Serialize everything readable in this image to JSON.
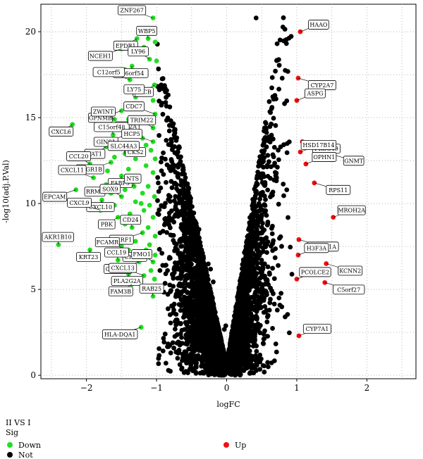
{
  "chart_data": {
    "type": "scatter",
    "title": "",
    "xlabel": "logFC",
    "ylabel": "-log10(adj.P.Val)",
    "xlim": [
      -2.65,
      2.7
    ],
    "ylim": [
      -0.2,
      21.6
    ],
    "x_ticks": [
      -2,
      -1,
      0,
      1,
      2
    ],
    "y_ticks": [
      0,
      5,
      10,
      15,
      20
    ],
    "grid": "dotted",
    "legend": {
      "placement": "bottom-left",
      "title1": "II VS I",
      "title2": "Sig",
      "entries": [
        {
          "name": "Down",
          "color": "#22dd22"
        },
        {
          "name": "Not",
          "color": "#000000"
        },
        {
          "name": "Up",
          "color": "#ee1111"
        }
      ]
    },
    "colors": {
      "down": "#22dd22",
      "not": "#000000",
      "up": "#ee1111"
    },
    "up_points": [
      {
        "x": 1.05,
        "y": 20.0,
        "label": "HAAO"
      },
      {
        "x": 1.02,
        "y": 17.3,
        "label": "CYP2A7"
      },
      {
        "x": 1.0,
        "y": 16.0,
        "label": "ASPG"
      },
      {
        "x": 1.08,
        "y": 13.6,
        "label": "FKSG49"
      },
      {
        "x": 1.05,
        "y": 13.0,
        "label": "HSD17B14"
      },
      {
        "x": 1.47,
        "y": 12.9,
        "label": "GNMT"
      },
      {
        "x": 1.13,
        "y": 12.3,
        "label": "OPHN1"
      },
      {
        "x": 1.25,
        "y": 11.2,
        "label": "RPS11"
      },
      {
        "x": 1.52,
        "y": 9.2,
        "label": "MROH2A"
      },
      {
        "x": 1.03,
        "y": 7.9,
        "label": "PPP1R1A"
      },
      {
        "x": 1.02,
        "y": 7.0,
        "label": "H3F3A"
      },
      {
        "x": 1.42,
        "y": 6.5,
        "label": "KCNN2"
      },
      {
        "x": 1.0,
        "y": 5.6,
        "label": "PCOLCE2"
      },
      {
        "x": 1.4,
        "y": 5.4,
        "label": "C5orf27"
      },
      {
        "x": 1.03,
        "y": 2.3,
        "label": "CYP7A1"
      }
    ],
    "down_points": [
      {
        "x": -1.05,
        "y": 20.8,
        "label": "ZNF267"
      },
      {
        "x": -1.28,
        "y": 19.6,
        "label": "EPDR1"
      },
      {
        "x": -1.12,
        "y": 19.6,
        "label": "WBP5"
      },
      {
        "x": -1.5,
        "y": 19.0,
        "label": "NCEH1"
      },
      {
        "x": -1.1,
        "y": 18.4,
        "label": "LY96"
      },
      {
        "x": -1.35,
        "y": 18.0,
        "label": "C16orf54"
      },
      {
        "x": -1.38,
        "y": 17.2,
        "label": "C12orf5"
      },
      {
        "x": -1.03,
        "y": 16.9,
        "label": "MICB"
      },
      {
        "x": -1.3,
        "y": 16.2,
        "label": "LY75"
      },
      {
        "x": -1.5,
        "y": 15.4,
        "label": "GPNMB"
      },
      {
        "x": -1.6,
        "y": 14.9,
        "label": "ZWINT"
      },
      {
        "x": -1.4,
        "y": 14.9,
        "label": "ITM2A"
      },
      {
        "x": -1.02,
        "y": 15.2,
        "label": "CDC7"
      },
      {
        "x": -2.2,
        "y": 14.6,
        "label": "CXCL6"
      },
      {
        "x": -1.62,
        "y": 14.0,
        "label": "C15orf48"
      },
      {
        "x": -1.42,
        "y": 14.0,
        "label": "GINS1"
      },
      {
        "x": -1.05,
        "y": 14.4,
        "label": "TRIM22"
      },
      {
        "x": -1.28,
        "y": 13.4,
        "label": "CKS2"
      },
      {
        "x": -1.05,
        "y": 13.6,
        "label": "HCP5"
      },
      {
        "x": -1.72,
        "y": 13.3,
        "label": "FAT1"
      },
      {
        "x": -1.45,
        "y": 12.9,
        "label": "SLC44A3"
      },
      {
        "x": -1.65,
        "y": 12.4,
        "label": "FCGR1B"
      },
      {
        "x": -1.95,
        "y": 12.3,
        "label": "CCL20"
      },
      {
        "x": -1.5,
        "y": 11.6,
        "label": "FABP5"
      },
      {
        "x": -1.9,
        "y": 11.5,
        "label": "CXCL11"
      },
      {
        "x": -1.72,
        "y": 11.1,
        "label": "RRM2"
      },
      {
        "x": -1.32,
        "y": 11.0,
        "label": "NTS"
      },
      {
        "x": -2.15,
        "y": 10.8,
        "label": "EPCAM"
      },
      {
        "x": -1.5,
        "y": 10.4,
        "label": "SOX9"
      },
      {
        "x": -1.78,
        "y": 10.2,
        "label": "CXCL10"
      },
      {
        "x": -1.8,
        "y": 9.6,
        "label": "CXCL9"
      },
      {
        "x": -1.55,
        "y": 9.2,
        "label": "PBK"
      },
      {
        "x": -1.35,
        "y": 8.6,
        "label": "CD24"
      },
      {
        "x": -1.2,
        "y": 8.3,
        "label": "UHRF1"
      },
      {
        "x": -2.4,
        "y": 7.6,
        "label": "AKR1B10"
      },
      {
        "x": -1.95,
        "y": 7.3,
        "label": "KRT23"
      },
      {
        "x": -1.4,
        "y": 7.3,
        "label": "FCAMR"
      },
      {
        "x": -1.15,
        "y": 7.3,
        "label": "CHST4"
      },
      {
        "x": -1.55,
        "y": 6.7,
        "label": "CCL19"
      },
      {
        "x": -1.25,
        "y": 6.6,
        "label": "CLDN10"
      },
      {
        "x": -1.05,
        "y": 6.6,
        "label": "FMO1"
      },
      {
        "x": -1.4,
        "y": 5.9,
        "label": "PLA2G2A"
      },
      {
        "x": -1.18,
        "y": 5.8,
        "label": "CXCL13"
      },
      {
        "x": -1.35,
        "y": 5.3,
        "label": "FAM3B"
      },
      {
        "x": -1.05,
        "y": 4.6,
        "label": "RAB25"
      },
      {
        "x": -1.22,
        "y": 2.8,
        "label": "HLA-DQA1"
      }
    ],
    "extra_down_points": [
      [
        -1.0,
        18.3
      ],
      [
        -1.2,
        17.6
      ],
      [
        -1.15,
        16.5
      ],
      [
        -1.05,
        16.0
      ],
      [
        -1.25,
        15.6
      ],
      [
        -1.1,
        15.0
      ],
      [
        -1.35,
        14.3
      ],
      [
        -1.2,
        13.8
      ],
      [
        -1.08,
        13.1
      ],
      [
        -1.3,
        12.6
      ],
      [
        -1.15,
        12.2
      ],
      [
        -1.4,
        12.0
      ],
      [
        -1.05,
        11.8
      ],
      [
        -1.25,
        11.4
      ],
      [
        -1.12,
        11.0
      ],
      [
        -1.45,
        10.8
      ],
      [
        -1.2,
        10.6
      ],
      [
        -1.03,
        10.4
      ],
      [
        -1.3,
        10.1
      ],
      [
        -1.1,
        9.9
      ],
      [
        -1.6,
        9.9
      ],
      [
        -1.18,
        9.6
      ],
      [
        -1.38,
        9.4
      ],
      [
        -1.05,
        9.2
      ],
      [
        -1.25,
        9.0
      ],
      [
        -1.45,
        8.8
      ],
      [
        -1.12,
        8.6
      ],
      [
        -1.02,
        8.1
      ],
      [
        -1.3,
        7.8
      ],
      [
        -1.1,
        7.6
      ],
      [
        -1.5,
        7.5
      ],
      [
        -1.02,
        7.0
      ],
      [
        -1.22,
        7.0
      ],
      [
        -1.35,
        6.3
      ],
      [
        -1.08,
        6.1
      ],
      [
        -1.6,
        12.7
      ],
      [
        -1.7,
        11.9
      ],
      [
        -1.4,
        13.5
      ],
      [
        -1.55,
        14.3
      ],
      [
        -1.25,
        14.8
      ],
      [
        -1.15,
        13.4
      ],
      [
        -1.02,
        12.6
      ],
      [
        -1.07,
        14.8
      ],
      [
        -1.33,
        16.5
      ],
      [
        -1.18,
        19.1
      ],
      [
        -1.02,
        19.4
      ],
      [
        -1.45,
        17.8
      ],
      [
        -1.22,
        10.0
      ],
      [
        -1.65,
        10.6
      ],
      [
        -1.03,
        5.6
      ],
      [
        -1.12,
        5.0
      ]
    ],
    "dense_points_note": ""
  }
}
